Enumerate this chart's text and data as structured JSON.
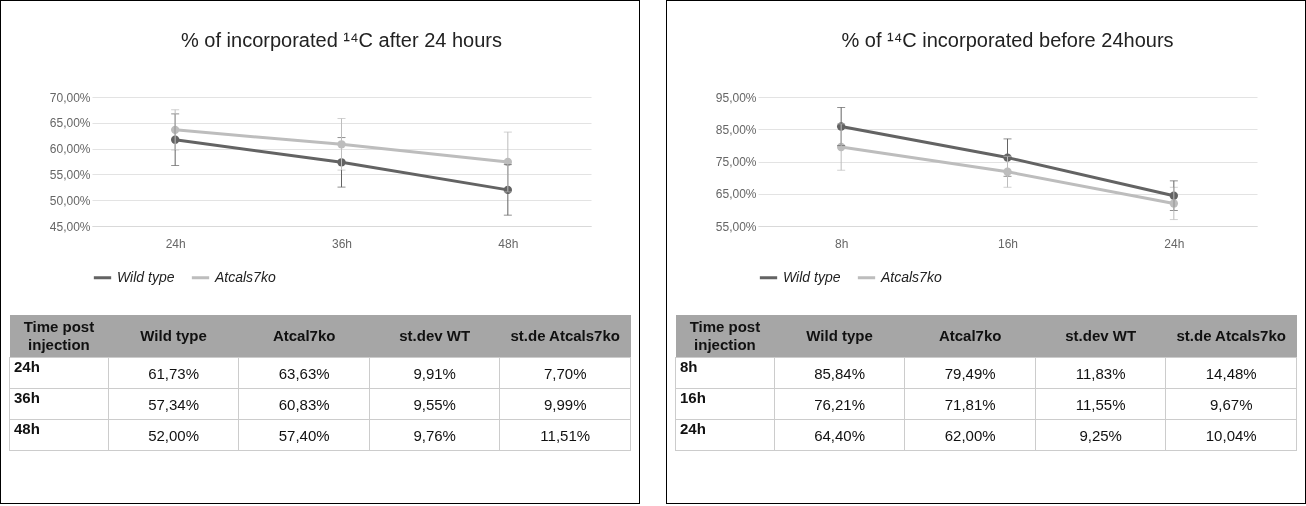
{
  "chart_data": [
    {
      "type": "line",
      "title": "% of incorporated ¹⁴C after 24 hours",
      "categories": [
        "24h",
        "36h",
        "48h"
      ],
      "series": [
        {
          "name": "Wild type",
          "color": "#636363",
          "values": [
            61.73,
            57.34,
            52.0
          ],
          "errors": [
            5.0,
            4.8,
            4.9
          ]
        },
        {
          "name": "Atcals7ko",
          "color": "#bdbdbd",
          "values": [
            63.63,
            60.83,
            57.4
          ],
          "errors": [
            3.9,
            5.0,
            5.8
          ]
        }
      ],
      "ylim": [
        45,
        70
      ],
      "yticks": [
        {
          "value": 45,
          "label": "45,00%"
        },
        {
          "value": 50,
          "label": "50,00%"
        },
        {
          "value": 55,
          "label": "55,00%"
        },
        {
          "value": 60,
          "label": "60,00%"
        },
        {
          "value": 65,
          "label": "65,00%"
        },
        {
          "value": 70,
          "label": "70,00%"
        }
      ],
      "grid": "y",
      "legend": "bottom",
      "marker": "circle"
    },
    {
      "type": "other",
      "xlabel": "Time post injection",
      "categories": [
        "24h",
        "36h",
        "48h"
      ],
      "series": [
        {
          "name": "Wild type",
          "values": [
            61.73,
            57.34,
            52.0
          ],
          "value_labels": [
            "61,73%",
            "57,34%",
            "52,00%"
          ]
        },
        {
          "name": "Atcal7ko",
          "values": [
            63.63,
            60.83,
            57.4
          ],
          "value_labels": [
            "63,63%",
            "60,83%",
            "57,40%"
          ]
        },
        {
          "name": "st.dev WT",
          "values": [
            9.91,
            9.55,
            9.76
          ],
          "value_labels": [
            "9,91%",
            "9,55%",
            "9,76%"
          ]
        },
        {
          "name": "st.de Atcals7ko",
          "values": [
            7.7,
            9.99,
            11.51
          ],
          "value_labels": [
            "7,70%",
            "9,99%",
            "11,51%"
          ]
        }
      ]
    },
    {
      "type": "line",
      "title": "% of ¹⁴C incorporated before 24hours",
      "categories": [
        "8h",
        "16h",
        "24h"
      ],
      "series": [
        {
          "name": "Wild type",
          "color": "#636363",
          "values": [
            85.84,
            76.21,
            64.4
          ],
          "errors": [
            5.9,
            5.8,
            4.6
          ]
        },
        {
          "name": "Atcals7ko",
          "color": "#bdbdbd",
          "values": [
            79.49,
            71.81,
            62.0
          ],
          "errors": [
            7.2,
            4.8,
            5.0
          ]
        }
      ],
      "ylim": [
        55,
        95
      ],
      "yticks": [
        {
          "value": 55,
          "label": "55,00%"
        },
        {
          "value": 65,
          "label": "65,00%"
        },
        {
          "value": 75,
          "label": "75,00%"
        },
        {
          "value": 85,
          "label": "85,00%"
        },
        {
          "value": 95,
          "label": "95,00%"
        }
      ],
      "grid": "y",
      "legend": "bottom",
      "marker": "circle"
    },
    {
      "type": "other",
      "xlabel": "Time post injection",
      "categories": [
        "8h",
        "16h",
        "24h"
      ],
      "series": [
        {
          "name": "Wild type",
          "values": [
            85.84,
            76.21,
            64.4
          ],
          "value_labels": [
            "85,84%",
            "76,21%",
            "64,40%"
          ]
        },
        {
          "name": "Atcal7ko",
          "values": [
            79.49,
            71.81,
            62.0
          ],
          "value_labels": [
            "79,49%",
            "71,81%",
            "62,00%"
          ]
        },
        {
          "name": "st.dev WT",
          "values": [
            11.83,
            11.55,
            9.25
          ],
          "value_labels": [
            "11,83%",
            "11,55%",
            "9,25%"
          ]
        },
        {
          "name": "st.de Atcals7ko",
          "values": [
            14.48,
            9.67,
            10.04
          ],
          "value_labels": [
            "14,48%",
            "9,67%",
            "10,04%"
          ]
        }
      ]
    }
  ]
}
